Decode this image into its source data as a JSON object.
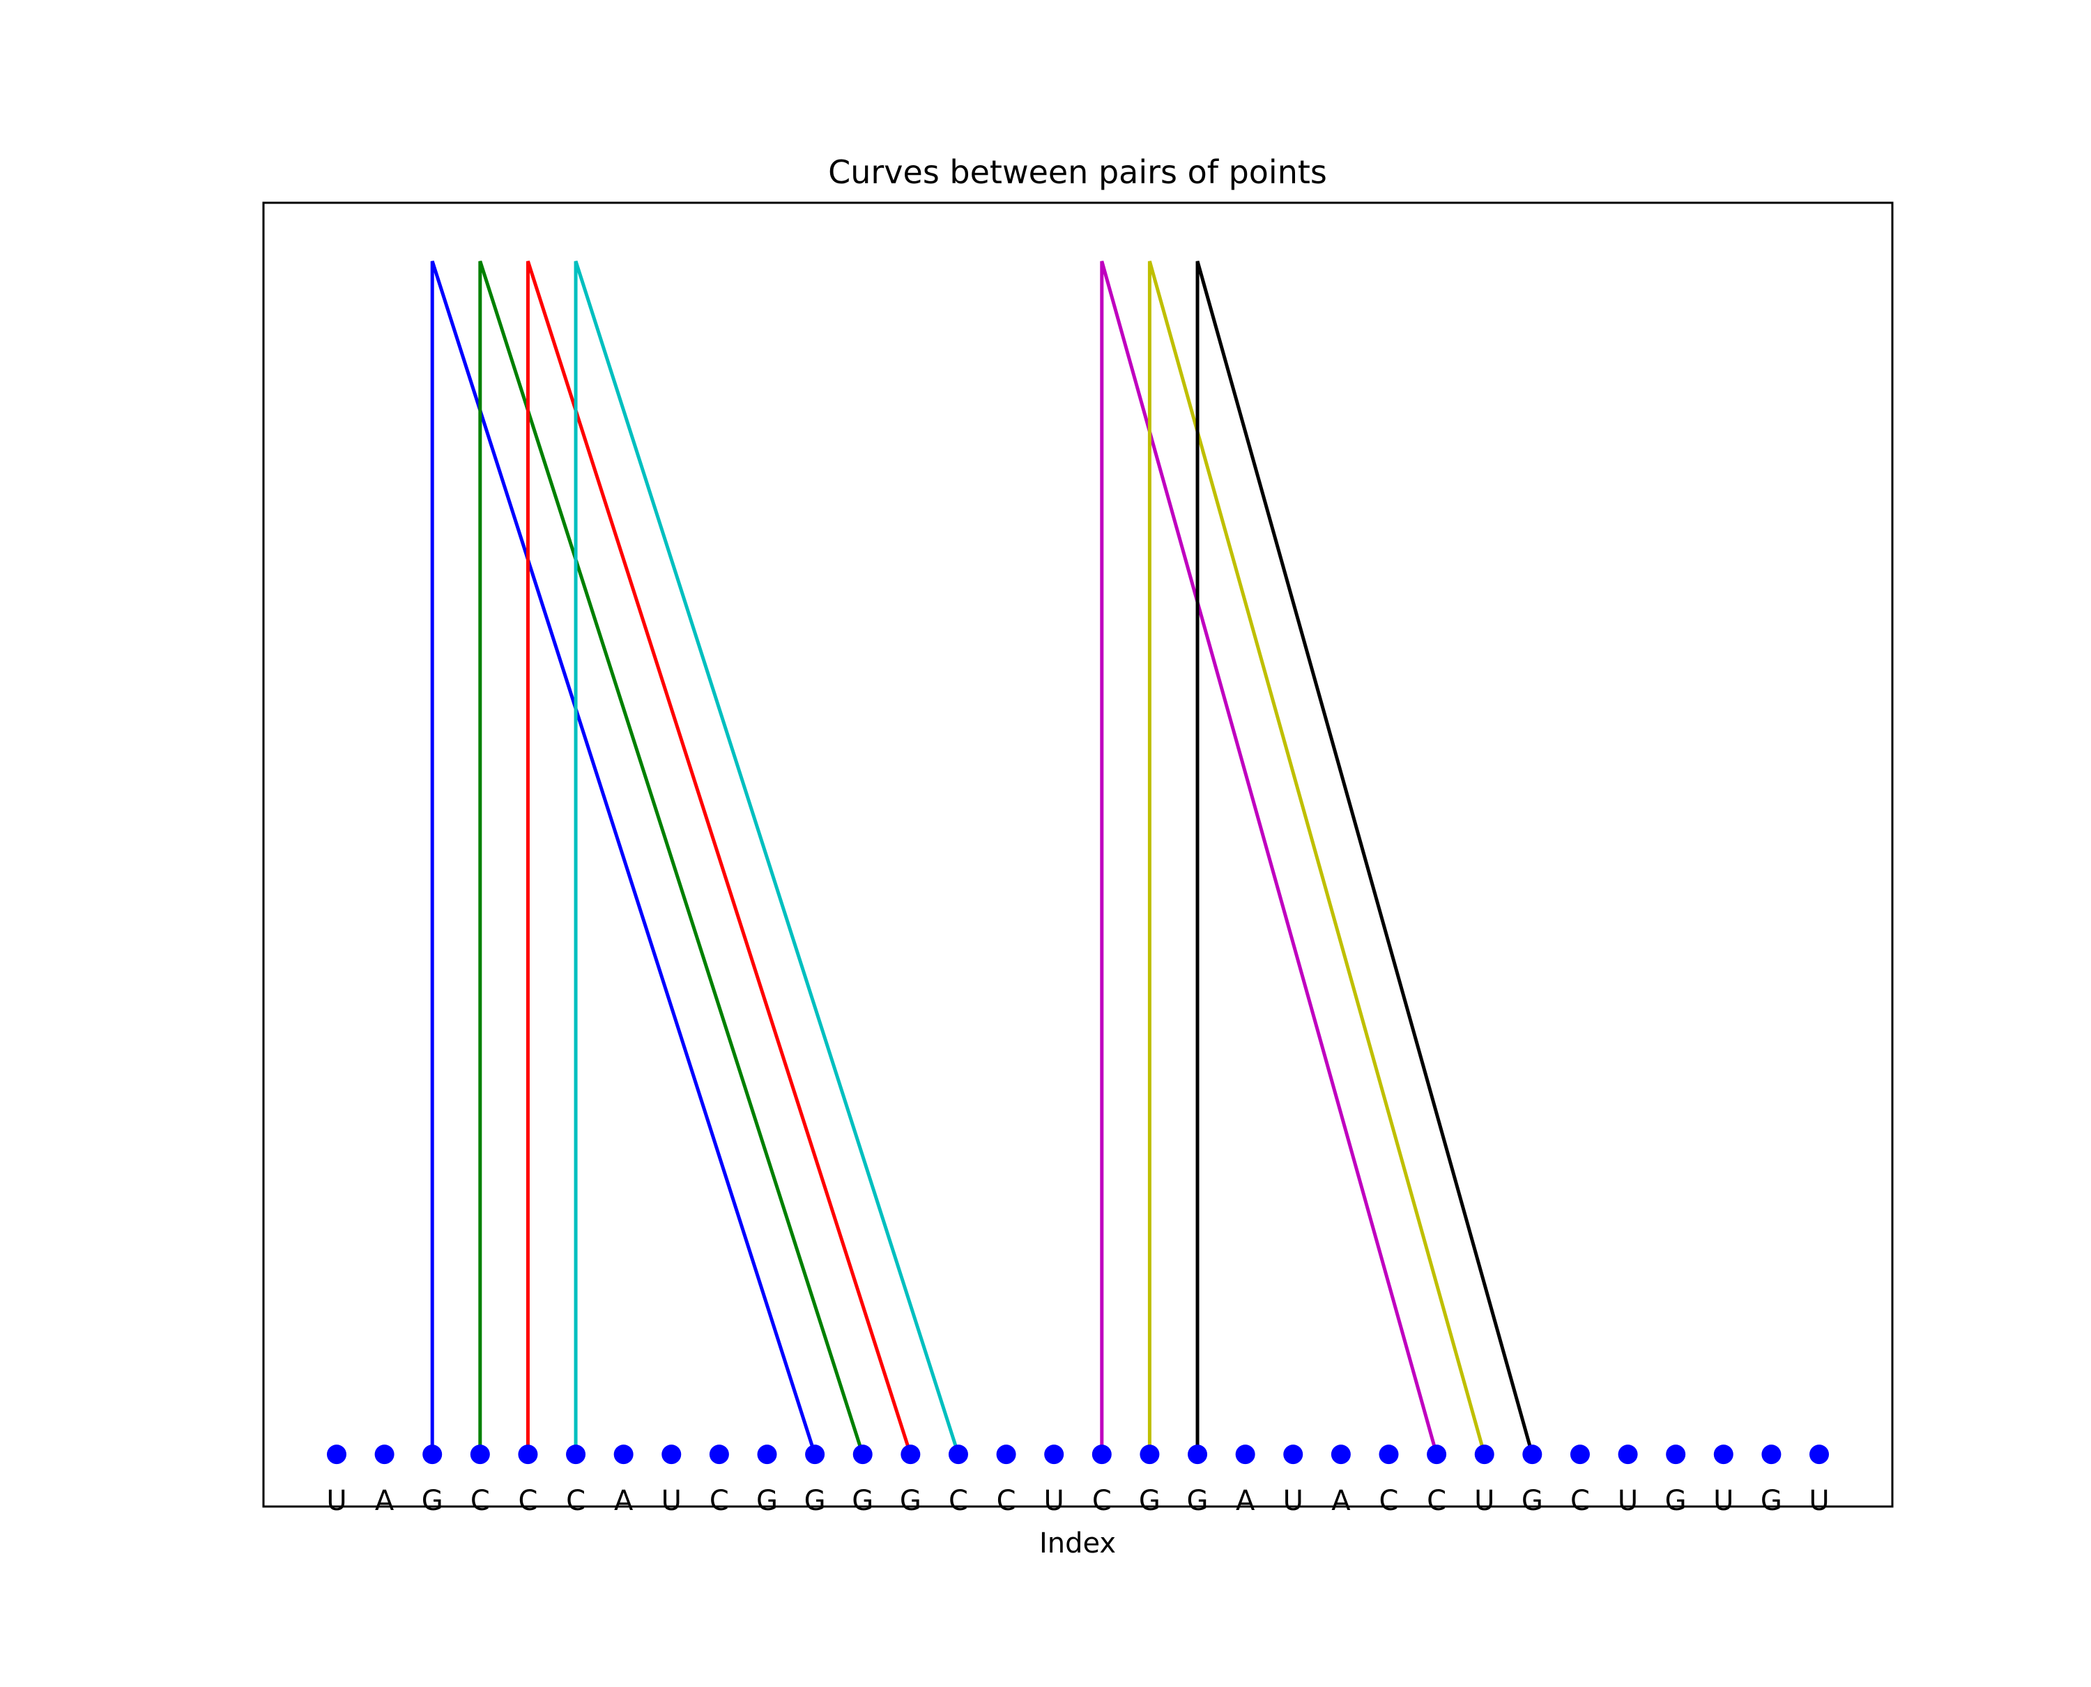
{
  "chart_data": {
    "type": "arc-diagram",
    "title": "Curves between pairs of points",
    "xlabel": "Index",
    "ylabel": "",
    "xlim": [
      -1.53,
      32.53
    ],
    "ylim": [
      -1.25,
      30
    ],
    "point_color": "#0000ff",
    "sequence": [
      "U",
      "A",
      "G",
      "C",
      "C",
      "C",
      "A",
      "U",
      "C",
      "G",
      "G",
      "G",
      "G",
      "C",
      "C",
      "U",
      "C",
      "G",
      "G",
      "A",
      "U",
      "A",
      "C",
      "C",
      "U",
      "G",
      "C",
      "U",
      "G",
      "U",
      "G",
      "U"
    ],
    "pairs": [
      {
        "from": 2,
        "to": 10,
        "color": "#0000ff"
      },
      {
        "from": 3,
        "to": 11,
        "color": "#008000"
      },
      {
        "from": 4,
        "to": 12,
        "color": "#ff0000"
      },
      {
        "from": 5,
        "to": 13,
        "color": "#00bfbf"
      },
      {
        "from": 16,
        "to": 23,
        "color": "#bf00bf"
      },
      {
        "from": 17,
        "to": 24,
        "color": "#bfbf00"
      },
      {
        "from": 18,
        "to": 25,
        "color": "#000000"
      }
    ],
    "peak_height": 28.6
  }
}
